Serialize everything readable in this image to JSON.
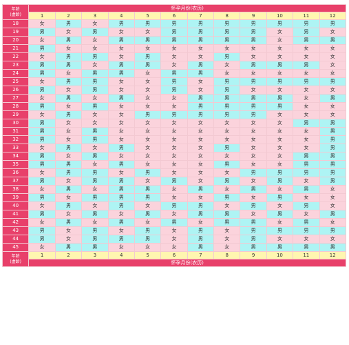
{
  "colors": {
    "header_bg": "#e8406a",
    "header_text": "#ffffff",
    "month_bg": "#fff6b0",
    "male_bg": "#aef4f4",
    "female_bg": "#fbd3dc"
  },
  "header": {
    "age_label_line1": "年龄",
    "age_label_line2": "(虚龄)",
    "month_title": "怀孕月份(农历)"
  },
  "footer": {
    "age_label_line1": "年龄",
    "age_label_line2": "(虚龄)",
    "month_title": "怀孕月份(农历)"
  },
  "months": [
    "1",
    "2",
    "3",
    "4",
    "5",
    "6",
    "7",
    "8",
    "9",
    "10",
    "11",
    "12"
  ],
  "rows": [
    {
      "age": "18",
      "cells": [
        "女",
        "男",
        "女",
        "男",
        "男",
        "男",
        "男",
        "男",
        "男",
        "男",
        "男",
        "男"
      ]
    },
    {
      "age": "19",
      "cells": [
        "男",
        "女",
        "男",
        "女",
        "女",
        "男",
        "男",
        "男",
        "男",
        "女",
        "男",
        "女"
      ]
    },
    {
      "age": "20",
      "cells": [
        "女",
        "男",
        "女",
        "男",
        "男",
        "男",
        "男",
        "男",
        "男",
        "女",
        "男",
        "男"
      ]
    },
    {
      "age": "21",
      "cells": [
        "男",
        "女",
        "女",
        "女",
        "女",
        "女",
        "女",
        "女",
        "女",
        "女",
        "女",
        "女"
      ]
    },
    {
      "age": "22",
      "cells": [
        "女",
        "男",
        "男",
        "女",
        "男",
        "女",
        "女",
        "男",
        "女",
        "女",
        "女",
        "女"
      ]
    },
    {
      "age": "23",
      "cells": [
        "男",
        "男",
        "女",
        "男",
        "男",
        "女",
        "男",
        "女",
        "男",
        "男",
        "男",
        "女"
      ]
    },
    {
      "age": "24",
      "cells": [
        "男",
        "女",
        "男",
        "男",
        "女",
        "男",
        "男",
        "女",
        "女",
        "女",
        "女",
        "女"
      ]
    },
    {
      "age": "25",
      "cells": [
        "女",
        "男",
        "男",
        "女",
        "女",
        "男",
        "女",
        "男",
        "男",
        "男",
        "男",
        "男"
      ]
    },
    {
      "age": "26",
      "cells": [
        "男",
        "女",
        "男",
        "女",
        "女",
        "男",
        "女",
        "男",
        "女",
        "女",
        "女",
        "女"
      ]
    },
    {
      "age": "27",
      "cells": [
        "女",
        "男",
        "女",
        "男",
        "女",
        "女",
        "男",
        "男",
        "男",
        "男",
        "女",
        "男"
      ]
    },
    {
      "age": "28",
      "cells": [
        "男",
        "女",
        "男",
        "女",
        "女",
        "女",
        "男",
        "男",
        "男",
        "男",
        "女",
        "女"
      ]
    },
    {
      "age": "29",
      "cells": [
        "女",
        "男",
        "女",
        "女",
        "男",
        "男",
        "男",
        "男",
        "男",
        "女",
        "女",
        "女"
      ]
    },
    {
      "age": "30",
      "cells": [
        "男",
        "女",
        "女",
        "女",
        "女",
        "女",
        "女",
        "女",
        "女",
        "女",
        "男",
        "男"
      ]
    },
    {
      "age": "31",
      "cells": [
        "男",
        "女",
        "男",
        "女",
        "女",
        "女",
        "女",
        "女",
        "女",
        "女",
        "女",
        "男"
      ]
    },
    {
      "age": "32",
      "cells": [
        "男",
        "女",
        "男",
        "女",
        "女",
        "女",
        "女",
        "女",
        "女",
        "女",
        "女",
        "男"
      ]
    },
    {
      "age": "33",
      "cells": [
        "女",
        "男",
        "女",
        "男",
        "女",
        "女",
        "女",
        "男",
        "女",
        "女",
        "女",
        "男"
      ]
    },
    {
      "age": "34",
      "cells": [
        "男",
        "女",
        "男",
        "女",
        "女",
        "女",
        "女",
        "女",
        "女",
        "女",
        "男",
        "男"
      ]
    },
    {
      "age": "35",
      "cells": [
        "男",
        "男",
        "女",
        "男",
        "女",
        "女",
        "女",
        "男",
        "女",
        "女",
        "男",
        "男"
      ]
    },
    {
      "age": "36",
      "cells": [
        "女",
        "男",
        "男",
        "女",
        "男",
        "女",
        "女",
        "女",
        "男",
        "男",
        "男",
        "男"
      ]
    },
    {
      "age": "37",
      "cells": [
        "男",
        "女",
        "男",
        "男",
        "女",
        "男",
        "女",
        "男",
        "女",
        "男",
        "女",
        "男"
      ]
    },
    {
      "age": "38",
      "cells": [
        "女",
        "男",
        "女",
        "男",
        "男",
        "女",
        "男",
        "女",
        "男",
        "女",
        "男",
        "女"
      ]
    },
    {
      "age": "39",
      "cells": [
        "男",
        "女",
        "男",
        "男",
        "男",
        "女",
        "女",
        "男",
        "女",
        "男",
        "女",
        "女"
      ]
    },
    {
      "age": "40",
      "cells": [
        "女",
        "男",
        "女",
        "男",
        "女",
        "男",
        "男",
        "女",
        "男",
        "女",
        "男",
        "女"
      ]
    },
    {
      "age": "41",
      "cells": [
        "男",
        "女",
        "男",
        "女",
        "男",
        "女",
        "男",
        "男",
        "女",
        "男",
        "女",
        "男"
      ]
    },
    {
      "age": "42",
      "cells": [
        "女",
        "男",
        "女",
        "男",
        "女",
        "男",
        "女",
        "男",
        "男",
        "女",
        "男",
        "女"
      ]
    },
    {
      "age": "43",
      "cells": [
        "男",
        "女",
        "男",
        "女",
        "男",
        "女",
        "男",
        "女",
        "男",
        "男",
        "男",
        "男"
      ]
    },
    {
      "age": "44",
      "cells": [
        "男",
        "女",
        "男",
        "男",
        "男",
        "女",
        "男",
        "女",
        "男",
        "女",
        "女",
        "女"
      ]
    },
    {
      "age": "45",
      "cells": [
        "女",
        "男",
        "男",
        "女",
        "女",
        "女",
        "男",
        "女",
        "男",
        "男",
        "男",
        "男"
      ]
    }
  ]
}
